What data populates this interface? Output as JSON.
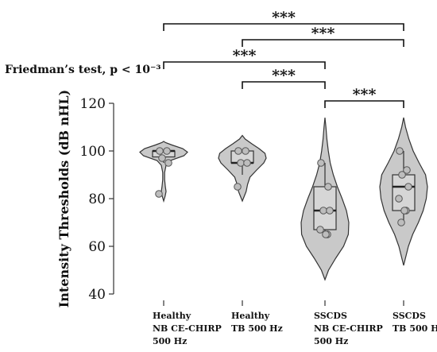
{
  "chart_data": {
    "type": "violin",
    "annotation": "Friedman’s test, p < 10⁻³",
    "ylabel": "Intensity Thresholds (dB nHL)",
    "ylim": [
      40,
      120
    ],
    "yticks": [
      40,
      60,
      80,
      100,
      120
    ],
    "fill_color": "#c9c9c9",
    "stroke_color": "#333333",
    "groups": [
      {
        "label_lines": [
          "Healthy",
          "NB CE-CHIRP",
          "500 Hz"
        ],
        "box": {
          "q1": 97.5,
          "median": 100,
          "q3": 100,
          "whisker_low": 95,
          "whisker_high": 100
        },
        "points": [
          100,
          100,
          97,
          95,
          82
        ],
        "violin": [
          [
            79,
            0.0
          ],
          [
            81,
            0.06
          ],
          [
            83,
            0.1
          ],
          [
            85,
            0.07
          ],
          [
            88,
            0.04
          ],
          [
            91,
            0.04
          ],
          [
            94,
            0.1
          ],
          [
            96,
            0.28
          ],
          [
            98,
            0.85
          ],
          [
            99.5,
            1.0
          ],
          [
            101,
            0.8
          ],
          [
            102.5,
            0.35
          ],
          [
            103.5,
            0.08
          ],
          [
            104,
            0.0
          ]
        ]
      },
      {
        "label_lines": [
          "Healthy",
          "TB 500 Hz"
        ],
        "box": {
          "q1": 95,
          "median": 95,
          "q3": 100,
          "whisker_low": 90,
          "whisker_high": 100
        },
        "points": [
          100,
          100,
          95,
          95,
          85
        ],
        "violin": [
          [
            79,
            0.0
          ],
          [
            81,
            0.08
          ],
          [
            83,
            0.16
          ],
          [
            86,
            0.22
          ],
          [
            89,
            0.32
          ],
          [
            92,
            0.6
          ],
          [
            95,
            0.9
          ],
          [
            97,
            1.0
          ],
          [
            99,
            0.95
          ],
          [
            101,
            0.7
          ],
          [
            103,
            0.4
          ],
          [
            105,
            0.12
          ],
          [
            106.5,
            0.0
          ]
        ]
      },
      {
        "label_lines": [
          "SSCDS",
          "NB CE-CHIRP",
          "500 Hz"
        ],
        "box": {
          "q1": 67,
          "median": 75,
          "q3": 85,
          "whisker_low": 65,
          "whisker_high": 95
        },
        "points": [
          95,
          85,
          75,
          75,
          67,
          65,
          65
        ],
        "violin": [
          [
            46,
            0.0
          ],
          [
            50,
            0.15
          ],
          [
            55,
            0.45
          ],
          [
            60,
            0.78
          ],
          [
            65,
            0.98
          ],
          [
            70,
            1.0
          ],
          [
            75,
            0.9
          ],
          [
            80,
            0.72
          ],
          [
            85,
            0.52
          ],
          [
            90,
            0.35
          ],
          [
            95,
            0.22
          ],
          [
            100,
            0.14
          ],
          [
            105,
            0.08
          ],
          [
            110,
            0.04
          ],
          [
            114,
            0.0
          ]
        ]
      },
      {
        "label_lines": [
          "SSCDS",
          "TB 500 Hz"
        ],
        "box": {
          "q1": 75,
          "median": 85,
          "q3": 90,
          "whisker_low": 70,
          "whisker_high": 100
        },
        "points": [
          100,
          92,
          90,
          85,
          80,
          75,
          75,
          70
        ],
        "violin": [
          [
            52,
            0.0
          ],
          [
            56,
            0.1
          ],
          [
            60,
            0.2
          ],
          [
            65,
            0.38
          ],
          [
            70,
            0.62
          ],
          [
            75,
            0.82
          ],
          [
            80,
            0.95
          ],
          [
            85,
            1.0
          ],
          [
            90,
            0.92
          ],
          [
            95,
            0.65
          ],
          [
            100,
            0.4
          ],
          [
            105,
            0.22
          ],
          [
            110,
            0.08
          ],
          [
            114,
            0.0
          ]
        ]
      }
    ],
    "comparisons": [
      {
        "from": 0,
        "to": 3,
        "label": "***"
      },
      {
        "from": 1,
        "to": 3,
        "label": "***"
      },
      {
        "from": 0,
        "to": 2,
        "label": "***"
      },
      {
        "from": 1,
        "to": 2,
        "label": "***"
      },
      {
        "from": 2,
        "to": 3,
        "label": "***"
      }
    ]
  }
}
